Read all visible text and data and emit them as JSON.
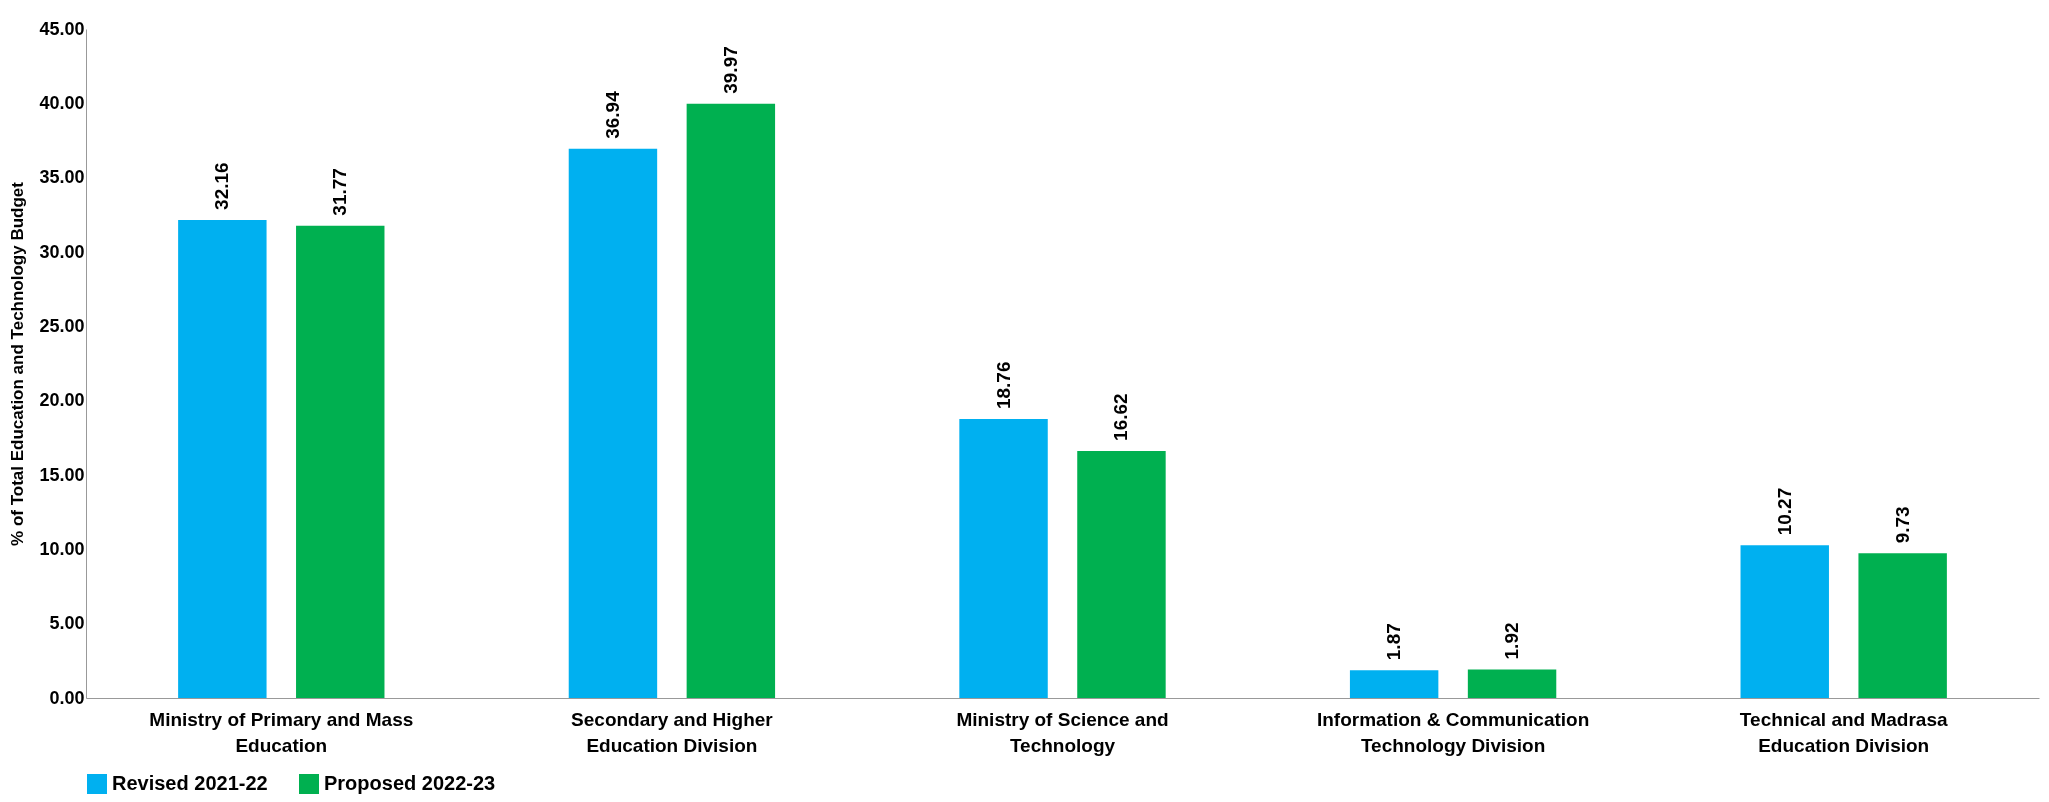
{
  "chart_data": {
    "type": "bar",
    "ylabel": "% of Total Education and Technology Budget",
    "categories": [
      "Ministry of Primary and Mass Education",
      "Secondary and Higher Education Division",
      "Ministry of Science and Technology",
      "Information & Communication Technology Division",
      "Technical and Madrasa Education Division"
    ],
    "series": [
      {
        "name": "Revised 2021-22",
        "color": "#00b0f0",
        "values": [
          32.16,
          36.94,
          18.76,
          1.87,
          10.27
        ]
      },
      {
        "name": "Proposed 2022-23",
        "color": "#00b050",
        "values": [
          31.77,
          39.97,
          16.62,
          1.92,
          9.73
        ]
      }
    ],
    "ylim": [
      0,
      45
    ],
    "yticks": [
      {
        "value": 0,
        "label": "0.00"
      },
      {
        "value": 5,
        "label": "5.00"
      },
      {
        "value": 10,
        "label": "10.00"
      },
      {
        "value": 15,
        "label": "15.00"
      },
      {
        "value": 20,
        "label": "20.00"
      },
      {
        "value": 25,
        "label": "25.00"
      },
      {
        "value": 30,
        "label": "30.00"
      },
      {
        "value": 35,
        "label": "35.00"
      },
      {
        "value": 40,
        "label": "40.00"
      },
      {
        "value": 45,
        "label": "45.00"
      }
    ],
    "grid": false,
    "legend": "bottom",
    "data_labels": true
  }
}
